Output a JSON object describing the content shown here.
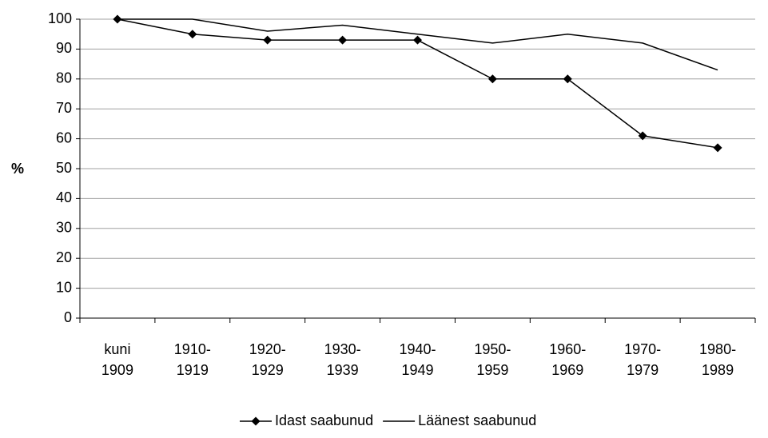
{
  "chart_data": {
    "type": "line",
    "y_label": "%",
    "categories": [
      "kuni\n1909",
      "1910-\n1919",
      "1920-\n1929",
      "1930-\n1939",
      "1940-\n1949",
      "1950-\n1959",
      "1960-\n1969",
      "1970-\n1979",
      "1980-\n1989"
    ],
    "series": [
      {
        "name": "Idast saabunud",
        "color": "#000000",
        "marker": "diamond",
        "values": [
          100,
          95,
          93,
          93,
          93,
          80,
          80,
          61,
          57
        ]
      },
      {
        "name": "Läänest saabunud",
        "color": "#000000",
        "marker": "none",
        "values": [
          100,
          100,
          96,
          98,
          95,
          92,
          95,
          92,
          83
        ]
      }
    ],
    "ylim": [
      0,
      100
    ],
    "yticks": [
      0,
      10,
      20,
      30,
      40,
      50,
      60,
      70,
      80,
      90,
      100
    ],
    "grid": true,
    "legend": "bottom"
  }
}
